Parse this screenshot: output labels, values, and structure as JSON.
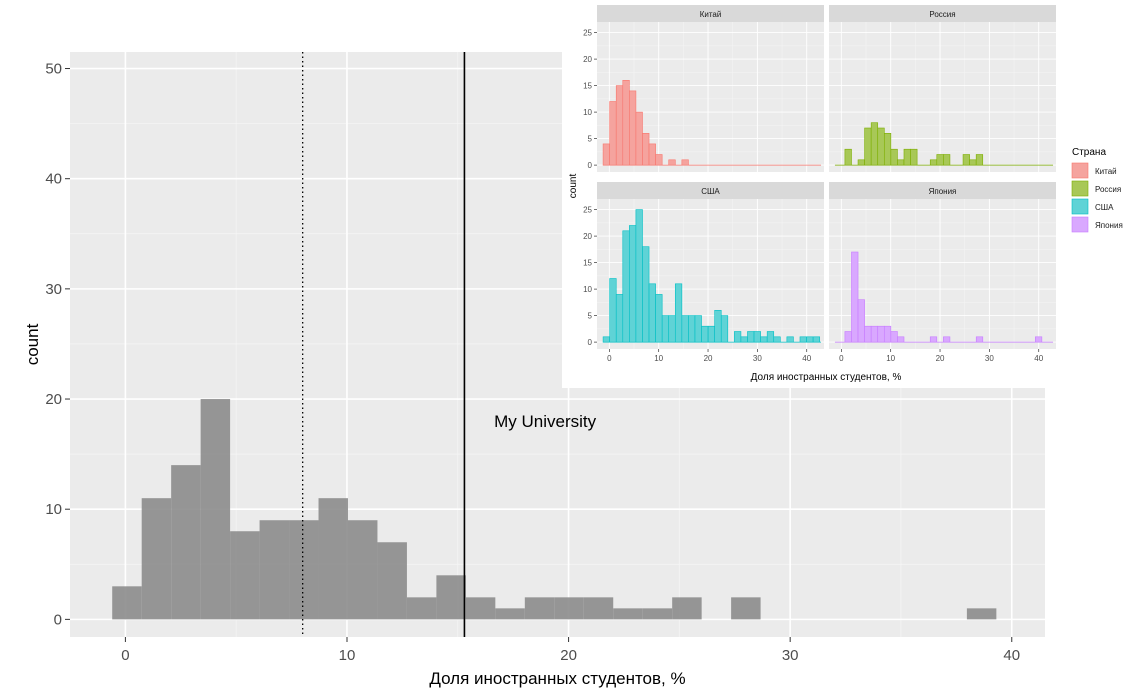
{
  "main": {
    "xlabel": "Доля иностранных студентов, %",
    "ylabel": "count",
    "annotation": "My University",
    "colors": {
      "panel": "#ebebeb",
      "grid": "#ffffff",
      "bar": "#8c8c8c",
      "text": "#000000",
      "tick": "#4d4d4d"
    }
  },
  "inset": {
    "xlabel": "Доля иностранных студентов, %",
    "ylabel": "count",
    "legend_title": "Страна",
    "strip_color": "#d9d9d9"
  },
  "chart_data": [
    {
      "type": "bar",
      "subtype": "histogram",
      "xlabel": "Доля иностранных студентов, %",
      "ylabel": "count",
      "xlim": [
        -2.5,
        41.5
      ],
      "ylim": [
        -1.6,
        51.5
      ],
      "xticks": [
        0,
        10,
        20,
        30,
        40
      ],
      "yticks": [
        0,
        10,
        20,
        30,
        40,
        50
      ],
      "bin_width": 1.33,
      "bins": [
        {
          "x": 0.07,
          "y": 3
        },
        {
          "x": 1.4,
          "y": 11
        },
        {
          "x": 2.73,
          "y": 14
        },
        {
          "x": 4.06,
          "y": 20
        },
        {
          "x": 5.39,
          "y": 8
        },
        {
          "x": 6.72,
          "y": 9
        },
        {
          "x": 8.05,
          "y": 9
        },
        {
          "x": 9.38,
          "y": 11
        },
        {
          "x": 10.71,
          "y": 9
        },
        {
          "x": 12.04,
          "y": 7
        },
        {
          "x": 13.37,
          "y": 2
        },
        {
          "x": 14.7,
          "y": 4
        },
        {
          "x": 16.03,
          "y": 2
        },
        {
          "x": 17.36,
          "y": 1
        },
        {
          "x": 18.69,
          "y": 2
        },
        {
          "x": 20.02,
          "y": 2
        },
        {
          "x": 21.35,
          "y": 2
        },
        {
          "x": 22.68,
          "y": 1
        },
        {
          "x": 24.01,
          "y": 1
        },
        {
          "x": 25.34,
          "y": 2
        },
        {
          "x": 28.0,
          "y": 2
        },
        {
          "x": 38.64,
          "y": 1
        }
      ],
      "reference_lines": [
        {
          "x": 8.0,
          "style": "dotted"
        },
        {
          "x": 15.3,
          "style": "solid",
          "label": "My University"
        }
      ],
      "annotations": [
        {
          "text": "My University",
          "x": 19.8,
          "y": 18
        }
      ]
    },
    {
      "type": "bar",
      "subtype": "faceted histogram",
      "xlabel": "Доля иностранных студентов, %",
      "ylabel": "count",
      "xlim": [
        -2.5,
        43.5
      ],
      "ylim": [
        -1.3,
        27
      ],
      "xticks": [
        0,
        10,
        20,
        30,
        40
      ],
      "yticks": [
        0,
        5,
        10,
        15,
        20,
        25
      ],
      "legend": {
        "title": "Страна",
        "position": "right"
      },
      "bin_width": 1.33,
      "facets": [
        {
          "name": "Китай",
          "color": "#f8766d",
          "fill": "#f5a39e",
          "bins": [
            {
              "x": -0.6,
              "y": 4
            },
            {
              "x": 0.73,
              "y": 12
            },
            {
              "x": 2.06,
              "y": 15
            },
            {
              "x": 3.39,
              "y": 16
            },
            {
              "x": 4.72,
              "y": 14
            },
            {
              "x": 6.05,
              "y": 10
            },
            {
              "x": 7.38,
              "y": 6
            },
            {
              "x": 8.71,
              "y": 4
            },
            {
              "x": 10.04,
              "y": 2
            },
            {
              "x": 12.7,
              "y": 1
            },
            {
              "x": 15.36,
              "y": 1
            }
          ]
        },
        {
          "name": "Россия",
          "color": "#7cae00",
          "fill": "#a8c857",
          "bins": [
            {
              "x": 1.39,
              "y": 3
            },
            {
              "x": 4.05,
              "y": 1
            },
            {
              "x": 5.38,
              "y": 7
            },
            {
              "x": 6.71,
              "y": 8
            },
            {
              "x": 8.04,
              "y": 7
            },
            {
              "x": 9.37,
              "y": 6
            },
            {
              "x": 10.7,
              "y": 3
            },
            {
              "x": 12.03,
              "y": 1
            },
            {
              "x": 13.36,
              "y": 3
            },
            {
              "x": 14.69,
              "y": 3
            },
            {
              "x": 18.68,
              "y": 1
            },
            {
              "x": 20.01,
              "y": 2
            },
            {
              "x": 21.34,
              "y": 2
            },
            {
              "x": 25.33,
              "y": 2
            },
            {
              "x": 26.66,
              "y": 1
            },
            {
              "x": 27.99,
              "y": 2
            }
          ]
        },
        {
          "name": "США",
          "color": "#00bfc4",
          "fill": "#5fd3d6",
          "bins": [
            {
              "x": -0.6,
              "y": 1
            },
            {
              "x": 0.73,
              "y": 12
            },
            {
              "x": 2.06,
              "y": 9
            },
            {
              "x": 3.39,
              "y": 21
            },
            {
              "x": 4.72,
              "y": 22
            },
            {
              "x": 6.05,
              "y": 25
            },
            {
              "x": 7.38,
              "y": 18
            },
            {
              "x": 8.71,
              "y": 11
            },
            {
              "x": 10.04,
              "y": 9
            },
            {
              "x": 11.37,
              "y": 5
            },
            {
              "x": 12.7,
              "y": 5
            },
            {
              "x": 14.03,
              "y": 11
            },
            {
              "x": 15.36,
              "y": 5
            },
            {
              "x": 16.69,
              "y": 5
            },
            {
              "x": 18.02,
              "y": 5
            },
            {
              "x": 19.35,
              "y": 3
            },
            {
              "x": 20.68,
              "y": 3
            },
            {
              "x": 22.01,
              "y": 6
            },
            {
              "x": 23.34,
              "y": 5
            },
            {
              "x": 26.0,
              "y": 2
            },
            {
              "x": 27.33,
              "y": 1
            },
            {
              "x": 28.66,
              "y": 2
            },
            {
              "x": 29.99,
              "y": 2
            },
            {
              "x": 31.32,
              "y": 1
            },
            {
              "x": 32.65,
              "y": 2
            },
            {
              "x": 33.98,
              "y": 1
            },
            {
              "x": 36.64,
              "y": 1
            },
            {
              "x": 39.3,
              "y": 1
            },
            {
              "x": 40.63,
              "y": 1
            },
            {
              "x": 41.96,
              "y": 1
            }
          ]
        },
        {
          "name": "Япония",
          "color": "#c77cff",
          "fill": "#d9a8ff",
          "bins": [
            {
              "x": 1.39,
              "y": 2
            },
            {
              "x": 2.72,
              "y": 17
            },
            {
              "x": 4.05,
              "y": 8
            },
            {
              "x": 5.38,
              "y": 3
            },
            {
              "x": 6.71,
              "y": 3
            },
            {
              "x": 8.04,
              "y": 3
            },
            {
              "x": 9.37,
              "y": 3
            },
            {
              "x": 10.7,
              "y": 2
            },
            {
              "x": 12.03,
              "y": 1
            },
            {
              "x": 18.68,
              "y": 1
            },
            {
              "x": 21.34,
              "y": 1
            },
            {
              "x": 28.0,
              "y": 1
            },
            {
              "x": 39.97,
              "y": 1
            }
          ]
        }
      ]
    }
  ]
}
